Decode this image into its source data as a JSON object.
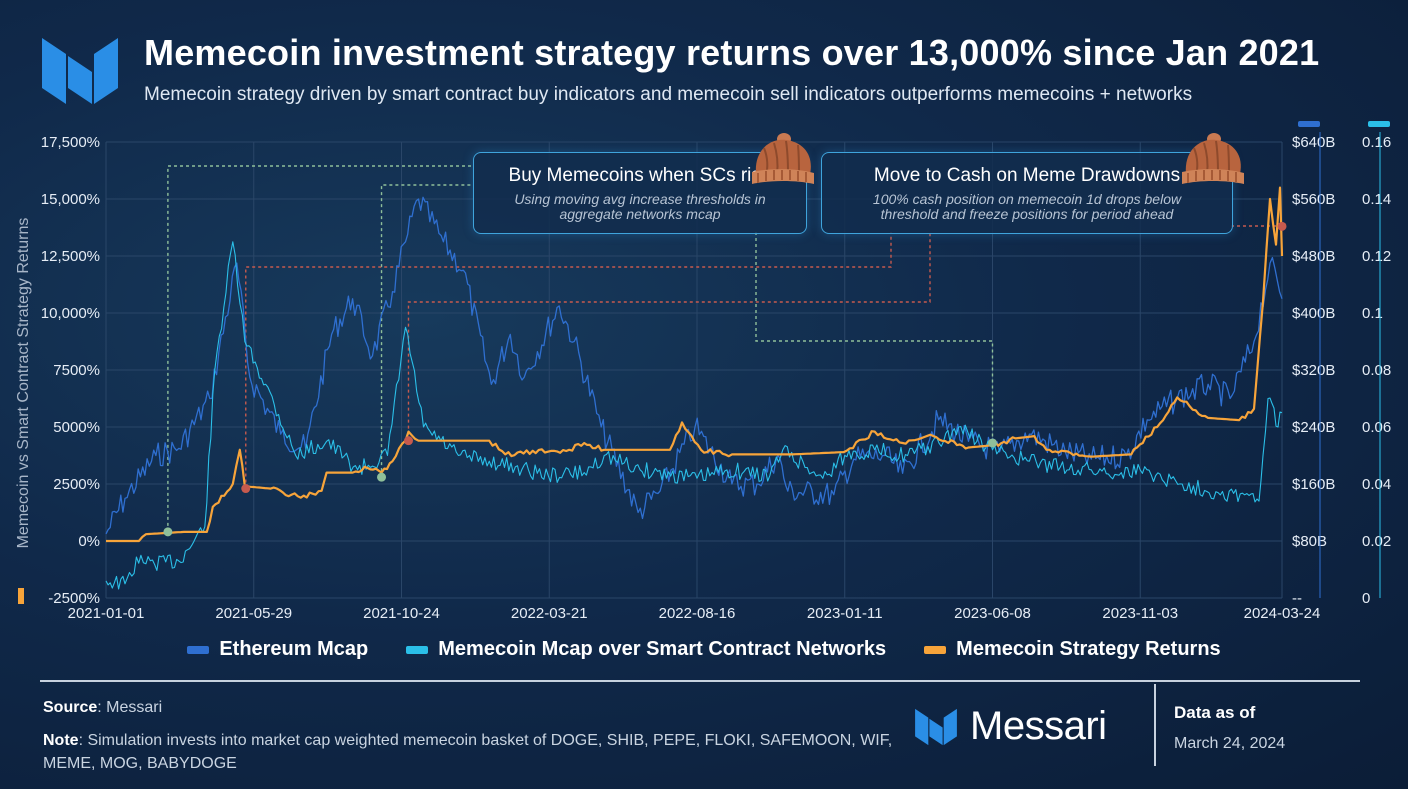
{
  "header": {
    "title": "Memecoin investment strategy returns over 13,000% since Jan 2021",
    "subtitle": "Memecoin strategy driven by smart contract buy indicators and memecoin sell indicators outperforms memecoins + networks"
  },
  "callouts": {
    "buy": {
      "title": "Buy Memecoins when SCs rise",
      "sub": "Using moving avg increase thresholds in aggregate networks mcap"
    },
    "sell": {
      "title": "Move to Cash on Meme Drawdowns",
      "sub": "100% cash position on memecoin 1d drops below threshold and freeze positions for period ahead"
    }
  },
  "legend": {
    "eth": "Ethereum Mcap",
    "meme": "Memecoin Mcap over Smart Contract Networks",
    "strategy": "Memecoin Strategy Returns"
  },
  "footer": {
    "source_label": "Source",
    "source_value": ": Messari",
    "note_label": "Note",
    "note_value": ": Simulation invests into market cap weighted memecoin basket of DOGE, SHIB, PEPE, FLOKI, SAFEMOON, WIF, MEME, MOG, BABYDOGE",
    "brand": "Messari",
    "asof_label": "Data as of",
    "asof_date": "March 24, 2024"
  },
  "colors": {
    "eth": "#2f6fd0",
    "meme": "#2bbfe8",
    "strategy": "#f7a43a",
    "grid": "#2a4668",
    "buy_marker": "#8fbf9a",
    "sell_marker": "#c65a4e"
  },
  "chart_data": {
    "type": "line",
    "ylabel": "Memecoin vs Smart Contract Strategy Returns",
    "x_ticks": [
      "2021-01-01",
      "2021-05-29",
      "2021-10-24",
      "2022-03-21",
      "2022-08-16",
      "2023-01-11",
      "2023-06-08",
      "2023-11-03",
      "2024-03-24"
    ],
    "y_left": {
      "ticks": [
        "17,500%",
        "15,000%",
        "12,500%",
        "10,000%",
        "7500%",
        "5000%",
        "2500%",
        "0%",
        "-2500%"
      ],
      "range": [
        -2500,
        17500
      ]
    },
    "y_mid": {
      "ticks": [
        "$640B",
        "$560B",
        "$480B",
        "$400B",
        "$320B",
        "$240B",
        "$160B",
        "$80B",
        "--"
      ],
      "range": [
        0,
        640
      ]
    },
    "y_right": {
      "ticks": [
        "0.16",
        "0.14",
        "0.12",
        "0.1",
        "0.08",
        "0.06",
        "0.04",
        "0.02",
        "0"
      ],
      "range": [
        0,
        0.16
      ]
    },
    "series": [
      {
        "name": "Ethereum Mcap",
        "axis": "mid",
        "points": [
          [
            "2021-01-01",
            90
          ],
          [
            "2021-01-20",
            140
          ],
          [
            "2021-02-20",
            200
          ],
          [
            "2021-03-15",
            210
          ],
          [
            "2021-04-15",
            280
          ],
          [
            "2021-05-12",
            470
          ],
          [
            "2021-05-25",
            310
          ],
          [
            "2021-06-25",
            230
          ],
          [
            "2021-07-20",
            210
          ],
          [
            "2021-08-15",
            370
          ],
          [
            "2021-09-05",
            420
          ],
          [
            "2021-09-25",
            340
          ],
          [
            "2021-10-15",
            430
          ],
          [
            "2021-10-28",
            500
          ],
          [
            "2021-11-10",
            560
          ],
          [
            "2021-12-05",
            500
          ],
          [
            "2021-12-25",
            460
          ],
          [
            "2022-01-22",
            300
          ],
          [
            "2022-02-10",
            370
          ],
          [
            "2022-02-24",
            310
          ],
          [
            "2022-03-31",
            410
          ],
          [
            "2022-04-15",
            360
          ],
          [
            "2022-05-12",
            240
          ],
          [
            "2022-06-18",
            120
          ],
          [
            "2022-07-10",
            150
          ],
          [
            "2022-08-14",
            240
          ],
          [
            "2022-09-20",
            160
          ],
          [
            "2022-10-15",
            160
          ],
          [
            "2022-11-05",
            200
          ],
          [
            "2022-11-15",
            150
          ],
          [
            "2022-12-31",
            145
          ],
          [
            "2023-01-20",
            195
          ],
          [
            "2023-02-20",
            200
          ],
          [
            "2023-03-10",
            175
          ],
          [
            "2023-04-15",
            250
          ],
          [
            "2023-05-15",
            220
          ],
          [
            "2023-06-15",
            205
          ],
          [
            "2023-07-15",
            230
          ],
          [
            "2023-08-20",
            205
          ],
          [
            "2023-09-15",
            195
          ],
          [
            "2023-10-20",
            200
          ],
          [
            "2023-11-10",
            250
          ],
          [
            "2023-12-10",
            280
          ],
          [
            "2024-01-10",
            300
          ],
          [
            "2024-02-01",
            280
          ],
          [
            "2024-02-25",
            360
          ],
          [
            "2024-03-12",
            470
          ],
          [
            "2024-03-24",
            420
          ]
        ]
      },
      {
        "name": "Memecoin Mcap over Smart Contract Networks",
        "axis": "right",
        "points": [
          [
            "2021-01-01",
            0.006
          ],
          [
            "2021-01-20",
            0.005
          ],
          [
            "2021-02-05",
            0.015
          ],
          [
            "2021-02-10",
            0.012
          ],
          [
            "2021-03-15",
            0.013
          ],
          [
            "2021-04-10",
            0.025
          ],
          [
            "2021-04-20",
            0.08
          ],
          [
            "2021-05-08",
            0.125
          ],
          [
            "2021-05-20",
            0.09
          ],
          [
            "2021-06-10",
            0.075
          ],
          [
            "2021-07-10",
            0.05
          ],
          [
            "2021-08-10",
            0.055
          ],
          [
            "2021-09-10",
            0.045
          ],
          [
            "2021-10-10",
            0.05
          ],
          [
            "2021-10-28",
            0.095
          ],
          [
            "2021-11-15",
            0.06
          ],
          [
            "2021-12-20",
            0.05
          ],
          [
            "2022-01-20",
            0.048
          ],
          [
            "2022-02-15",
            0.046
          ],
          [
            "2022-03-20",
            0.043
          ],
          [
            "2022-04-25",
            0.044
          ],
          [
            "2022-05-15",
            0.05
          ],
          [
            "2022-06-20",
            0.045
          ],
          [
            "2022-08-16",
            0.042
          ],
          [
            "2022-09-15",
            0.045
          ],
          [
            "2022-10-28",
            0.043
          ],
          [
            "2022-11-10",
            0.052
          ],
          [
            "2022-12-20",
            0.042
          ],
          [
            "2023-01-11",
            0.05
          ],
          [
            "2023-02-10",
            0.052
          ],
          [
            "2023-03-15",
            0.05
          ],
          [
            "2023-04-20",
            0.055
          ],
          [
            "2023-05-05",
            0.06
          ],
          [
            "2023-06-08",
            0.052
          ],
          [
            "2023-07-15",
            0.048
          ],
          [
            "2023-08-15",
            0.046
          ],
          [
            "2023-09-15",
            0.045
          ],
          [
            "2023-10-15",
            0.044
          ],
          [
            "2023-11-03",
            0.045
          ],
          [
            "2023-12-15",
            0.04
          ],
          [
            "2024-01-20",
            0.037
          ],
          [
            "2024-02-20",
            0.036
          ],
          [
            "2024-03-01",
            0.034
          ],
          [
            "2024-03-05",
            0.05
          ],
          [
            "2024-03-10",
            0.07
          ],
          [
            "2024-03-20",
            0.06
          ],
          [
            "2024-03-24",
            0.065
          ]
        ]
      },
      {
        "name": "Memecoin Strategy Returns",
        "axis": "left",
        "points": [
          [
            "2021-01-01",
            0
          ],
          [
            "2021-02-03",
            0
          ],
          [
            "2021-02-10",
            300
          ],
          [
            "2021-03-20",
            400
          ],
          [
            "2021-04-12",
            400
          ],
          [
            "2021-04-18",
            1500
          ],
          [
            "2021-05-08",
            2500
          ],
          [
            "2021-05-15",
            4000
          ],
          [
            "2021-05-20",
            2400
          ],
          [
            "2021-06-15",
            2300
          ],
          [
            "2021-07-15",
            1900
          ],
          [
            "2021-08-05",
            2200
          ],
          [
            "2021-08-10",
            3000
          ],
          [
            "2021-09-05",
            3000
          ],
          [
            "2021-09-20",
            3200
          ],
          [
            "2021-10-04",
            3000
          ],
          [
            "2021-10-15",
            3500
          ],
          [
            "2021-10-28",
            4400
          ],
          [
            "2021-10-31",
            4800
          ],
          [
            "2021-11-10",
            4400
          ],
          [
            "2022-01-20",
            4400
          ],
          [
            "2022-02-05",
            3800
          ],
          [
            "2022-04-10",
            4000
          ],
          [
            "2022-04-25",
            4300
          ],
          [
            "2022-05-15",
            4000
          ],
          [
            "2022-07-20",
            4000
          ],
          [
            "2022-08-01",
            5200
          ],
          [
            "2022-08-20",
            4000
          ],
          [
            "2022-09-20",
            3800
          ],
          [
            "2022-11-15",
            3800
          ],
          [
            "2022-11-20",
            3800
          ],
          [
            "2023-01-10",
            3900
          ],
          [
            "2023-02-10",
            4800
          ],
          [
            "2023-03-10",
            4300
          ],
          [
            "2023-04-10",
            4600
          ],
          [
            "2023-05-15",
            4100
          ],
          [
            "2023-06-08",
            4200
          ],
          [
            "2023-07-01",
            4500
          ],
          [
            "2023-07-20",
            4600
          ],
          [
            "2023-08-01",
            4000
          ],
          [
            "2023-09-15",
            3700
          ],
          [
            "2023-10-25",
            3800
          ],
          [
            "2023-11-20",
            5000
          ],
          [
            "2023-12-10",
            6300
          ],
          [
            "2024-01-10",
            5400
          ],
          [
            "2024-02-10",
            5300
          ],
          [
            "2024-02-25",
            5800
          ],
          [
            "2024-03-05",
            10500
          ],
          [
            "2024-03-12",
            15000
          ],
          [
            "2024-03-18",
            13000
          ],
          [
            "2024-03-22",
            15500
          ],
          [
            "2024-03-24",
            12500
          ]
        ]
      }
    ],
    "markers": {
      "buy": [
        [
          "2021-03-04",
          400
        ],
        [
          "2021-10-04",
          2800
        ],
        [
          "2023-06-08",
          4300
        ]
      ],
      "sell": [
        [
          "2021-05-21",
          2300
        ],
        [
          "2021-10-31",
          4400
        ],
        [
          "2024-03-27",
          13800
        ]
      ]
    }
  }
}
